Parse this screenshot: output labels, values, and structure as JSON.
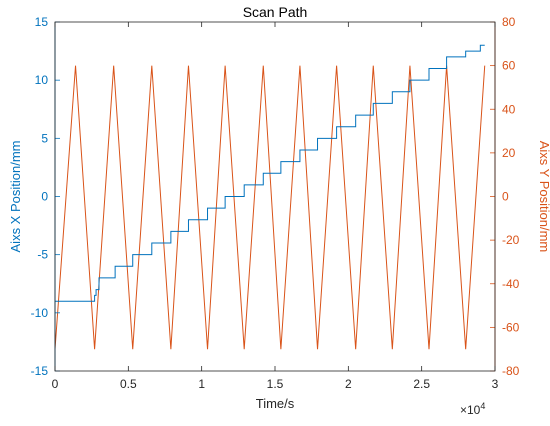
{
  "chart_data": {
    "type": "line",
    "title": "Scan Path",
    "xlabel": "Time/s",
    "x_multiplier_label": "×10",
    "x_multiplier_exponent": "4",
    "xlim": [
      0,
      30000
    ],
    "x_ticks": [
      0,
      5000,
      10000,
      15000,
      20000,
      25000,
      30000
    ],
    "x_tick_labels": [
      "0",
      "0.5",
      "1",
      "1.5",
      "2",
      "2.5",
      "3"
    ],
    "left_axis": {
      "label": "Aixs X Position/mm",
      "ylim": [
        -15,
        15
      ],
      "ticks": [
        -15,
        -10,
        -5,
        0,
        5,
        10,
        15
      ],
      "color": "#0072BD"
    },
    "right_axis": {
      "label": "Aixs Y Position/mm",
      "ylim": [
        -80,
        80
      ],
      "ticks": [
        -80,
        -60,
        -40,
        -20,
        0,
        20,
        40,
        60,
        80
      ],
      "color": "#D95319"
    },
    "grid": false,
    "series": [
      {
        "axis": "left",
        "color": "#0072BD",
        "style": "step",
        "x": [
          0,
          2700,
          2700,
          2800,
          2800,
          3000,
          3000,
          4100,
          4100,
          5300,
          5300,
          6600,
          6600,
          7900,
          7900,
          9100,
          9100,
          10400,
          10400,
          11600,
          11600,
          12900,
          12900,
          14200,
          14200,
          15400,
          15400,
          16700,
          16700,
          17900,
          17900,
          19200,
          19200,
          20500,
          20500,
          21700,
          21700,
          23000,
          23000,
          24200,
          24200,
          25500,
          25500,
          26700,
          26700,
          28000,
          28000,
          29000,
          29000,
          29300
        ],
        "y": [
          -9,
          -9,
          -8.5,
          -8.5,
          -8,
          -8,
          -7,
          -7,
          -6,
          -6,
          -5,
          -5,
          -4,
          -4,
          -3,
          -3,
          -2,
          -2,
          -1,
          -1,
          0,
          0,
          1,
          1,
          2,
          2,
          3,
          3,
          4,
          4,
          5,
          5,
          6,
          6,
          7,
          7,
          8,
          8,
          9,
          9,
          10,
          10,
          11,
          11,
          12,
          12,
          12.5,
          12.5,
          13,
          13
        ]
      },
      {
        "axis": "right",
        "color": "#D95319",
        "style": "line",
        "x": [
          0,
          1400,
          2700,
          4000,
          5300,
          6600,
          7900,
          9100,
          10400,
          11600,
          12900,
          14200,
          15400,
          16700,
          17900,
          19200,
          20500,
          21700,
          23000,
          24200,
          25500,
          26700,
          28000,
          29300
        ],
        "y": [
          -70,
          60,
          -70,
          60,
          -70,
          60,
          -70,
          60,
          -70,
          60,
          -70,
          60,
          -70,
          60,
          -70,
          60,
          -70,
          60,
          -70,
          60,
          -70,
          60,
          -70,
          60
        ]
      }
    ]
  }
}
